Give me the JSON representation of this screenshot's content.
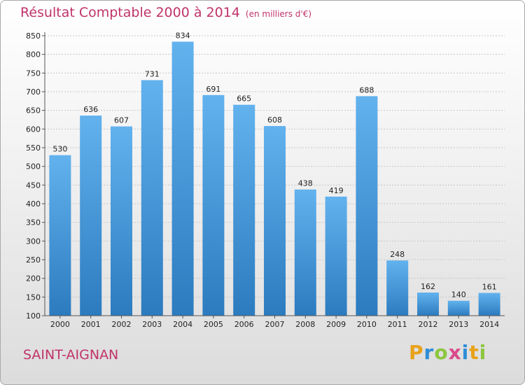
{
  "header": {
    "title": "Résultat Comptable 2000 à 2014",
    "unit": "(en milliers d'€)"
  },
  "footer": {
    "commune": "SAINT-AIGNAN",
    "logo_letters": [
      "P",
      "r",
      "o",
      "x",
      "i",
      "t",
      "i"
    ],
    "logo_colors": [
      "#e8a21a",
      "#2f8dd6",
      "#8cc63e",
      "#d94a8c",
      "#2f8dd6",
      "#e8a21a",
      "#8cc63e"
    ]
  },
  "colors": {
    "bar_top": "#62b2ee",
    "bar_bottom": "#2c7bbf",
    "grid": "#c8c8c8"
  },
  "chart_data": {
    "type": "bar",
    "categories": [
      "2000",
      "2001",
      "2002",
      "2003",
      "2004",
      "2005",
      "2006",
      "2007",
      "2008",
      "2009",
      "2010",
      "2011",
      "2012",
      "2013",
      "2014"
    ],
    "values": [
      530,
      636,
      607,
      731,
      834,
      691,
      665,
      608,
      438,
      419,
      688,
      248,
      162,
      140,
      161
    ],
    "ylim": [
      100,
      850
    ],
    "yticks": [
      100,
      150,
      200,
      250,
      300,
      350,
      400,
      450,
      500,
      550,
      600,
      650,
      700,
      750,
      800,
      850
    ],
    "grid": true,
    "xlabel": "",
    "ylabel": ""
  }
}
